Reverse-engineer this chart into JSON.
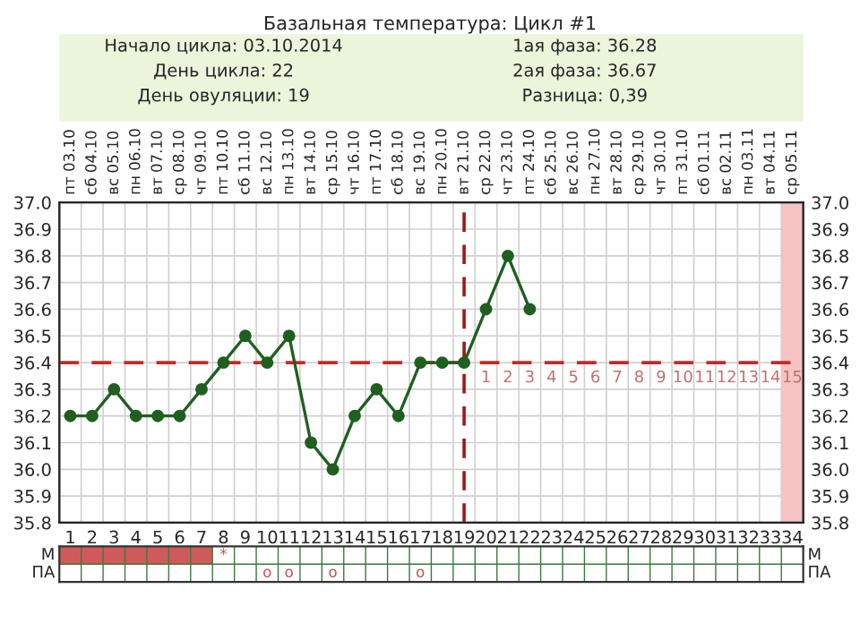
{
  "chart_data": [
    {
      "type": "line",
      "title": "Базальная температура: Цикл #1",
      "annotations": [
        "Начало цикла: 03.10.2014",
        "День цикла: 22",
        "День овуляции: 19",
        "1ая фаза: 36.28",
        "2ая фаза: 36.67",
        "Разница: 0,39",
        {
          "text": "1",
          "x": 20,
          "y": 36.4
        },
        {
          "text": "2",
          "x": 21,
          "y": 36.4
        },
        {
          "text": "3",
          "x": 22,
          "y": 36.4
        },
        {
          "text": "4",
          "x": 23,
          "y": 36.4
        },
        {
          "text": "5",
          "x": 24,
          "y": 36.4
        },
        {
          "text": "6",
          "x": 25,
          "y": 36.4
        },
        {
          "text": "7",
          "x": 26,
          "y": 36.4
        },
        {
          "text": "8",
          "x": 27,
          "y": 36.4
        },
        {
          "text": "9",
          "x": 28,
          "y": 36.4
        },
        {
          "text": "10",
          "x": 29,
          "y": 36.4
        },
        {
          "text": "11",
          "x": 30,
          "y": 36.4
        },
        {
          "text": "12",
          "x": 31,
          "y": 36.4
        },
        {
          "text": "13",
          "x": 32,
          "y": 36.4
        },
        {
          "text": "14",
          "x": 33,
          "y": 36.4
        },
        {
          "text": "15",
          "x": 34,
          "y": 36.4
        },
        "пт 03.10",
        "сб 04.10",
        "вс 05.10",
        "пн 06.10",
        "вт 07.10",
        "ср 08.10",
        "чт 09.10",
        "пт 10.10",
        "сб 11.10",
        "вс 12.10",
        "пн 13.10",
        "вт 14.10",
        "ср 15.10",
        "чт 16.10",
        "пт 17.10",
        "сб 18.10",
        "вс 19.10",
        "пн 20.10",
        "вт 21.10",
        "ср 22.10",
        "чт 23.10",
        "пт 24.10",
        "сб 25.10",
        "вс 26.10",
        "пн 27.10",
        "вт 28.10",
        "ср 29.10",
        "чт 30.10",
        "пт 31.10",
        "сб 01.11",
        "вс 02.11",
        "пн 03.11",
        "вт 04.11",
        "ср 05.11"
      ],
      "x": [
        1,
        2,
        3,
        4,
        5,
        6,
        7,
        8,
        9,
        10,
        11,
        12,
        13,
        14,
        15,
        16,
        17,
        18,
        19,
        20,
        21,
        22
      ],
      "series": [
        {
          "color": "#1f5f1f",
          "values": [
            36.2,
            36.2,
            36.3,
            36.2,
            36.2,
            36.2,
            36.3,
            36.4,
            36.5,
            36.4,
            36.5,
            36.1,
            36.0,
            36.2,
            36.3,
            36.2,
            36.4,
            36.4,
            36.4,
            36.6,
            36.8,
            36.6
          ]
        }
      ],
      "marker": "circle",
      "line_style": "solid",
      "grid": true,
      "xlim": [
        0.5,
        34.5
      ],
      "xticks": [
        1,
        2,
        3,
        4,
        5,
        6,
        7,
        8,
        9,
        10,
        11,
        12,
        13,
        14,
        15,
        16,
        17,
        18,
        19,
        20,
        21,
        22,
        23,
        24,
        25,
        26,
        27,
        28,
        29,
        30,
        31,
        32,
        33,
        34
      ],
      "ylim": [
        35.8,
        37.0
      ],
      "yticks": [
        {
          "value": 35.8,
          "label": "35.8"
        },
        {
          "value": 35.9,
          "label": "35.9"
        },
        {
          "value": 36.0,
          "label": "36.0"
        },
        {
          "value": 36.1,
          "label": "36.1"
        },
        {
          "value": 36.2,
          "label": "36.2"
        },
        {
          "value": 36.3,
          "label": "36.3"
        },
        {
          "value": 36.4,
          "label": "36.4"
        },
        {
          "value": 36.5,
          "label": "36.5"
        },
        {
          "value": 36.6,
          "label": "36.6"
        },
        {
          "value": 36.7,
          "label": "36.7"
        },
        {
          "value": 36.8,
          "label": "36.8"
        },
        {
          "value": 36.9,
          "label": "36.9"
        },
        {
          "value": 37.0,
          "label": "37.0"
        }
      ],
      "y2lim": [
        35.8,
        37.0
      ],
      "y2ticks": [
        {
          "value": 35.8,
          "label": "35.8"
        },
        {
          "value": 35.9,
          "label": "35.9"
        },
        {
          "value": 36.0,
          "label": "36.0"
        },
        {
          "value": 36.1,
          "label": "36.1"
        },
        {
          "value": 36.2,
          "label": "36.2"
        },
        {
          "value": 36.3,
          "label": "36.3"
        },
        {
          "value": 36.4,
          "label": "36.4"
        },
        {
          "value": 36.5,
          "label": "36.5"
        },
        {
          "value": 36.6,
          "label": "36.6"
        },
        {
          "value": 36.7,
          "label": "36.7"
        },
        {
          "value": 36.8,
          "label": "36.8"
        },
        {
          "value": 36.9,
          "label": "36.9"
        },
        {
          "value": 37.0,
          "label": "37.0"
        }
      ],
      "ref_lines": [
        {
          "axis": "y",
          "value": 36.4,
          "color": "#c62828",
          "line_style": "dashed"
        },
        {
          "axis": "x",
          "value": 19,
          "color": "#a01818",
          "line_style": "dashed"
        }
      ],
      "bands": [
        {
          "axis": "x",
          "from": 33.5,
          "to": 34.5,
          "color": "#f6c3c3"
        }
      ]
    },
    {
      "type": "other",
      "categories": [
        null,
        null,
        null,
        null,
        null,
        null,
        null,
        null,
        null,
        null,
        null,
        null,
        null,
        null,
        null,
        null,
        null,
        null,
        null,
        null,
        null,
        null,
        null,
        null,
        null,
        null,
        null,
        null,
        null,
        null,
        null,
        null,
        null,
        null
      ],
      "y_categories": [
        "М",
        "ПА"
      ],
      "y2_categories": [
        "М",
        "ПА"
      ],
      "cell_labels": [
        [
          null,
          null,
          null,
          null,
          null,
          null,
          null,
          "*",
          null,
          null,
          null,
          null,
          null,
          null,
          null,
          null,
          null,
          null,
          null,
          null,
          null,
          null,
          null,
          null,
          null,
          null,
          null,
          null,
          null,
          null,
          null,
          null,
          null,
          null
        ],
        [
          null,
          null,
          null,
          null,
          null,
          null,
          null,
          null,
          null,
          "о",
          "о",
          null,
          "о",
          null,
          null,
          null,
          "о",
          null,
          null,
          null,
          null,
          null,
          null,
          null,
          null,
          null,
          null,
          null,
          null,
          null,
          null,
          null,
          null,
          null
        ]
      ],
      "colors": [
        "#d05a5a",
        "#d05a5a",
        "#d05a5a",
        "#d05a5a",
        "#d05a5a",
        "#d05a5a",
        "#d05a5a",
        "#ffffff",
        "#ffffff",
        "#ffffff",
        "#ffffff",
        "#ffffff",
        "#ffffff",
        "#ffffff",
        "#ffffff",
        "#ffffff",
        "#ffffff",
        "#ffffff",
        "#ffffff",
        "#ffffff",
        "#ffffff",
        "#ffffff",
        "#ffffff",
        "#ffffff",
        "#ffffff",
        "#ffffff",
        "#ffffff",
        "#ffffff",
        "#ffffff",
        "#ffffff",
        "#ffffff",
        "#ffffff",
        "#ffffff",
        "#ffffff"
      ]
    }
  ]
}
